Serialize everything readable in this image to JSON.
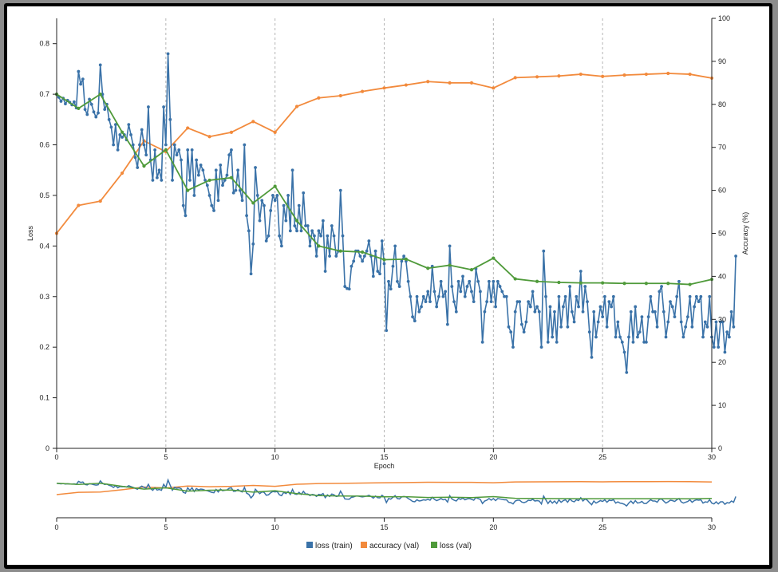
{
  "colors": {
    "loss_train": "#3a72a8",
    "accuracy_val": "#f28a3c",
    "loss_val": "#4f9a3a",
    "grid": "#b5b5b5",
    "axis": "#222222"
  },
  "chart_data": {
    "type": "line",
    "title": "",
    "xlabel": "Epoch",
    "ylabel_left": "Loss",
    "ylabel_right": "Accuracy (%)",
    "xlim": [
      0,
      30
    ],
    "ylim_left": [
      0,
      0.85
    ],
    "ylim_right": [
      0,
      100
    ],
    "x_ticks": [
      0,
      5,
      10,
      15,
      20,
      25,
      30
    ],
    "y_left_ticks": [
      0,
      0.1,
      0.2,
      0.3,
      0.4,
      0.5,
      0.6,
      0.7,
      0.8
    ],
    "y_right_ticks": [
      0,
      10,
      20,
      30,
      40,
      50,
      60,
      70,
      80,
      90,
      100
    ],
    "epoch_gridlines": [
      5,
      10,
      15,
      20,
      25,
      30
    ],
    "series": [
      {
        "name": "loss (train)",
        "key": "loss_train",
        "axis": "left",
        "x_start": 0,
        "x_step": 0.1,
        "values": [
          0.7,
          0.694,
          0.686,
          0.692,
          0.681,
          0.688,
          0.684,
          0.679,
          0.685,
          0.673,
          0.745,
          0.72,
          0.73,
          0.67,
          0.66,
          0.69,
          0.68,
          0.665,
          0.655,
          0.663,
          0.758,
          0.7,
          0.67,
          0.68,
          0.65,
          0.635,
          0.6,
          0.64,
          0.59,
          0.62,
          0.615,
          0.62,
          0.61,
          0.64,
          0.62,
          0.6,
          0.575,
          0.555,
          0.6,
          0.63,
          0.6,
          0.58,
          0.675,
          0.57,
          0.53,
          0.59,
          0.535,
          0.55,
          0.53,
          0.675,
          0.6,
          0.78,
          0.65,
          0.53,
          0.6,
          0.58,
          0.59,
          0.57,
          0.48,
          0.46,
          0.59,
          0.53,
          0.59,
          0.5,
          0.57,
          0.54,
          0.56,
          0.55,
          0.53,
          0.52,
          0.5,
          0.48,
          0.47,
          0.55,
          0.49,
          0.56,
          0.52,
          0.53,
          0.54,
          0.58,
          0.59,
          0.505,
          0.51,
          0.55,
          0.51,
          0.49,
          0.6,
          0.46,
          0.43,
          0.345,
          0.404,
          0.555,
          0.5,
          0.45,
          0.49,
          0.48,
          0.41,
          0.42,
          0.47,
          0.5,
          0.49,
          0.5,
          0.42,
          0.4,
          0.48,
          0.45,
          0.5,
          0.43,
          0.55,
          0.44,
          0.43,
          0.48,
          0.43,
          0.505,
          0.44,
          0.44,
          0.4,
          0.43,
          0.42,
          0.38,
          0.43,
          0.42,
          0.45,
          0.35,
          0.42,
          0.38,
          0.44,
          0.42,
          0.38,
          0.39,
          0.51,
          0.42,
          0.32,
          0.316,
          0.315,
          0.36,
          0.37,
          0.39,
          0.39,
          0.38,
          0.37,
          0.38,
          0.39,
          0.41,
          0.38,
          0.34,
          0.39,
          0.35,
          0.345,
          0.41,
          0.365,
          0.233,
          0.33,
          0.315,
          0.36,
          0.4,
          0.33,
          0.32,
          0.37,
          0.38,
          0.37,
          0.33,
          0.3,
          0.26,
          0.252,
          0.3,
          0.27,
          0.28,
          0.3,
          0.29,
          0.31,
          0.29,
          0.36,
          0.31,
          0.28,
          0.3,
          0.33,
          0.3,
          0.31,
          0.245,
          0.4,
          0.32,
          0.29,
          0.27,
          0.33,
          0.31,
          0.34,
          0.3,
          0.32,
          0.33,
          0.31,
          0.29,
          0.355,
          0.33,
          0.31,
          0.21,
          0.27,
          0.29,
          0.33,
          0.29,
          0.33,
          0.28,
          0.33,
          0.32,
          0.31,
          0.3,
          0.3,
          0.24,
          0.23,
          0.2,
          0.27,
          0.29,
          0.29,
          0.245,
          0.23,
          0.25,
          0.29,
          0.28,
          0.31,
          0.27,
          0.28,
          0.27,
          0.2,
          0.39,
          0.3,
          0.21,
          0.28,
          0.22,
          0.27,
          0.21,
          0.3,
          0.24,
          0.28,
          0.3,
          0.24,
          0.32,
          0.27,
          0.25,
          0.3,
          0.28,
          0.35,
          0.27,
          0.32,
          0.29,
          0.23,
          0.18,
          0.27,
          0.22,
          0.25,
          0.28,
          0.26,
          0.3,
          0.24,
          0.29,
          0.28,
          0.3,
          0.22,
          0.25,
          0.22,
          0.21,
          0.19,
          0.15,
          0.22,
          0.27,
          0.21,
          0.28,
          0.22,
          0.23,
          0.26,
          0.21,
          0.21,
          0.26,
          0.3,
          0.27,
          0.27,
          0.24,
          0.31,
          0.32,
          0.27,
          0.22,
          0.25,
          0.29,
          0.28,
          0.26,
          0.3,
          0.33,
          0.25,
          0.22,
          0.24,
          0.26,
          0.3,
          0.24,
          0.28,
          0.3,
          0.29,
          0.3,
          0.22,
          0.25,
          0.24,
          0.3,
          0.22,
          0.2,
          0.25,
          0.2,
          0.25,
          0.25,
          0.19,
          0.23,
          0.22,
          0.27,
          0.24,
          0.38
        ]
      },
      {
        "name": "accuracy (val)",
        "key": "accuracy_val",
        "axis": "right",
        "x": [
          0,
          1,
          2,
          3,
          4,
          5,
          6,
          7,
          8,
          9,
          10,
          11,
          12,
          13,
          14,
          15,
          16,
          17,
          18,
          19,
          20,
          21,
          22,
          23,
          24,
          25,
          26,
          27,
          28,
          29,
          30
        ],
        "values": [
          50,
          56.5,
          57.5,
          64,
          71.5,
          69,
          74.5,
          72.5,
          73.5,
          76,
          73.5,
          79.5,
          81.5,
          82,
          83,
          83.8,
          84.5,
          85.3,
          85,
          85,
          83.8,
          86.2,
          86.4,
          86.6,
          87,
          86.5,
          86.8,
          87,
          87.2,
          87,
          86.1
        ]
      },
      {
        "name": "loss (val)",
        "key": "loss_val",
        "axis": "left",
        "x": [
          0,
          1,
          2,
          3,
          4,
          5,
          6,
          7,
          8,
          9,
          10,
          11,
          12,
          13,
          14,
          15,
          16,
          17,
          18,
          19,
          20,
          21,
          22,
          23,
          24,
          25,
          26,
          27,
          28,
          29,
          30
        ],
        "values": [
          0.7,
          0.672,
          0.7,
          0.625,
          0.558,
          0.59,
          0.51,
          0.53,
          0.535,
          0.485,
          0.518,
          0.45,
          0.4,
          0.39,
          0.388,
          0.373,
          0.374,
          0.356,
          0.362,
          0.353,
          0.376,
          0.335,
          0.33,
          0.328,
          0.327,
          0.327,
          0.326,
          0.326,
          0.326,
          0.324,
          0.334
        ]
      }
    ],
    "overview": {
      "x_ticks": [
        0,
        5,
        10,
        15,
        20,
        25,
        30
      ]
    },
    "legend": {
      "position": "bottom-center",
      "entries": [
        "loss (train)",
        "accuracy (val)",
        "loss (val)"
      ]
    }
  }
}
